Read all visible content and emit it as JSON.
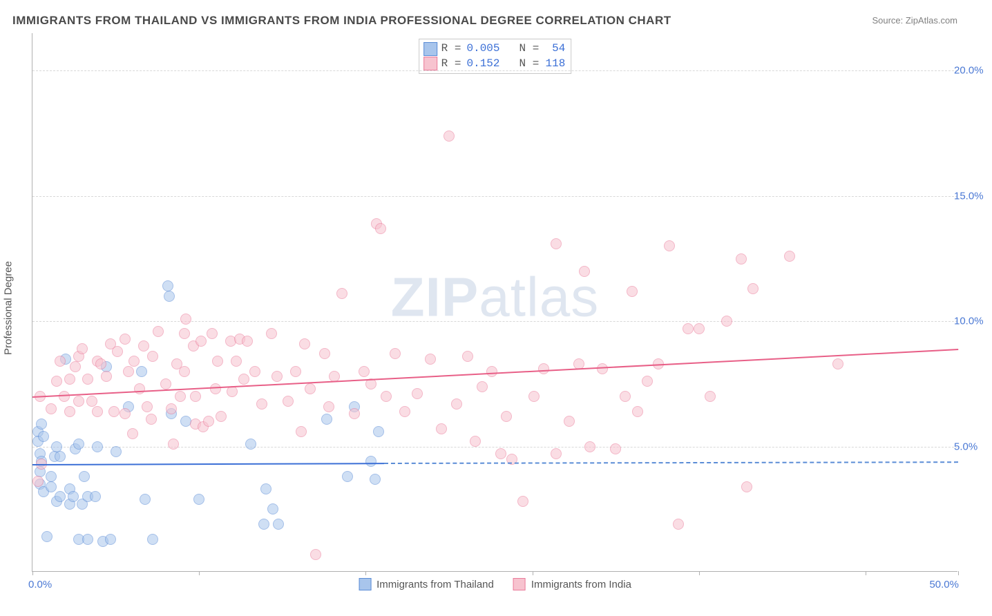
{
  "title": "IMMIGRANTS FROM THAILAND VS IMMIGRANTS FROM INDIA PROFESSIONAL DEGREE CORRELATION CHART",
  "source": "Source: ZipAtlas.com",
  "watermark": {
    "bold": "ZIP",
    "light": "atlas"
  },
  "yaxis_title": "Professional Degree",
  "chart": {
    "type": "scatter",
    "xlim": [
      0,
      50
    ],
    "ylim": [
      0,
      21.5
    ],
    "y_ticks": [
      5,
      10,
      15,
      20
    ],
    "y_tick_labels": [
      "5.0%",
      "10.0%",
      "15.0%",
      "20.0%"
    ],
    "x_ticks": [
      0,
      9,
      18,
      27,
      36,
      45,
      50
    ],
    "x_tick_show_label": [
      true,
      false,
      false,
      false,
      false,
      false,
      true
    ],
    "x_tick_labels": [
      "0.0%",
      "",
      "",
      "",
      "",
      "",
      "50.0%"
    ],
    "background_color": "#ffffff",
    "grid_color": "#d8d8d8",
    "axis_color": "#b0b0b0",
    "label_color": "#4a78d4",
    "marker_radius": 8,
    "marker_opacity": 0.55,
    "series": [
      {
        "key": "thailand",
        "label": "Immigrants from Thailand",
        "fill_color": "#a8c5ec",
        "stroke_color": "#5a8cd6",
        "trend": {
          "x1": 0,
          "y1": 4.3,
          "x2": 19,
          "y2": 4.35,
          "color": "#3b6fd6",
          "width": 2.3
        },
        "trend_dashed": {
          "x1": 19,
          "y1": 4.35,
          "x2": 50,
          "y2": 4.4,
          "color": "#5a8cd6"
        },
        "points": [
          [
            0.3,
            5.6
          ],
          [
            0.3,
            5.2
          ],
          [
            0.4,
            4.7
          ],
          [
            0.4,
            4.0
          ],
          [
            0.4,
            3.5
          ],
          [
            0.5,
            5.9
          ],
          [
            0.5,
            4.4
          ],
          [
            0.6,
            3.2
          ],
          [
            0.6,
            5.4
          ],
          [
            0.8,
            1.4
          ],
          [
            1.0,
            3.4
          ],
          [
            1.0,
            3.8
          ],
          [
            1.2,
            4.6
          ],
          [
            1.3,
            5.0
          ],
          [
            1.3,
            2.8
          ],
          [
            1.5,
            4.6
          ],
          [
            1.5,
            3.0
          ],
          [
            1.8,
            8.5
          ],
          [
            2.0,
            3.3
          ],
          [
            2.0,
            2.7
          ],
          [
            2.2,
            3.0
          ],
          [
            2.3,
            4.9
          ],
          [
            2.5,
            5.1
          ],
          [
            2.5,
            1.3
          ],
          [
            2.7,
            2.7
          ],
          [
            2.8,
            3.8
          ],
          [
            3.0,
            1.3
          ],
          [
            3.0,
            3.0
          ],
          [
            3.4,
            3.0
          ],
          [
            3.5,
            5.0
          ],
          [
            3.8,
            1.2
          ],
          [
            4.0,
            8.2
          ],
          [
            4.2,
            1.3
          ],
          [
            4.5,
            4.8
          ],
          [
            5.2,
            6.6
          ],
          [
            5.9,
            8.0
          ],
          [
            6.1,
            2.9
          ],
          [
            6.5,
            1.3
          ],
          [
            7.3,
            11.4
          ],
          [
            7.4,
            11.0
          ],
          [
            7.5,
            6.3
          ],
          [
            8.3,
            6.0
          ],
          [
            9.0,
            2.9
          ],
          [
            11.8,
            5.1
          ],
          [
            12.5,
            1.9
          ],
          [
            12.6,
            3.3
          ],
          [
            13.0,
            2.5
          ],
          [
            13.3,
            1.9
          ],
          [
            15.9,
            6.1
          ],
          [
            17.0,
            3.8
          ],
          [
            17.4,
            6.6
          ],
          [
            18.3,
            4.4
          ],
          [
            18.5,
            3.7
          ],
          [
            18.7,
            5.6
          ]
        ]
      },
      {
        "key": "india",
        "label": "Immigrants from India",
        "fill_color": "#f7c3cf",
        "stroke_color": "#ea7b9a",
        "trend": {
          "x1": 0,
          "y1": 7.0,
          "x2": 50,
          "y2": 8.9,
          "color": "#e85f87",
          "width": 2.3
        },
        "points": [
          [
            0.3,
            3.6
          ],
          [
            0.4,
            7.0
          ],
          [
            0.5,
            4.3
          ],
          [
            1.0,
            6.5
          ],
          [
            1.3,
            7.6
          ],
          [
            1.5,
            8.4
          ],
          [
            1.7,
            7.0
          ],
          [
            2.0,
            6.4
          ],
          [
            2.0,
            7.7
          ],
          [
            2.3,
            8.2
          ],
          [
            2.5,
            6.8
          ],
          [
            2.5,
            8.6
          ],
          [
            2.7,
            8.9
          ],
          [
            3.0,
            7.7
          ],
          [
            3.2,
            6.8
          ],
          [
            3.5,
            8.4
          ],
          [
            3.5,
            6.4
          ],
          [
            3.7,
            8.3
          ],
          [
            4.0,
            7.8
          ],
          [
            4.2,
            9.1
          ],
          [
            4.4,
            6.4
          ],
          [
            4.6,
            8.8
          ],
          [
            5.0,
            9.3
          ],
          [
            5.0,
            6.3
          ],
          [
            5.2,
            8.0
          ],
          [
            5.4,
            5.5
          ],
          [
            5.5,
            8.4
          ],
          [
            5.8,
            7.3
          ],
          [
            6.0,
            9.0
          ],
          [
            6.2,
            6.6
          ],
          [
            6.4,
            6.1
          ],
          [
            6.5,
            8.6
          ],
          [
            6.8,
            9.6
          ],
          [
            7.2,
            7.5
          ],
          [
            7.5,
            6.5
          ],
          [
            7.6,
            5.1
          ],
          [
            7.8,
            8.3
          ],
          [
            8.0,
            7.0
          ],
          [
            8.2,
            8.0
          ],
          [
            8.2,
            9.5
          ],
          [
            8.3,
            10.1
          ],
          [
            8.7,
            9.0
          ],
          [
            8.8,
            5.9
          ],
          [
            8.8,
            7.0
          ],
          [
            9.1,
            9.2
          ],
          [
            9.2,
            5.8
          ],
          [
            9.5,
            6.0
          ],
          [
            9.7,
            9.5
          ],
          [
            9.9,
            7.3
          ],
          [
            10.0,
            8.4
          ],
          [
            10.2,
            6.2
          ],
          [
            10.7,
            9.2
          ],
          [
            10.8,
            7.2
          ],
          [
            11.0,
            8.4
          ],
          [
            11.2,
            9.3
          ],
          [
            11.4,
            7.7
          ],
          [
            11.6,
            9.2
          ],
          [
            12.0,
            8.0
          ],
          [
            12.4,
            6.7
          ],
          [
            12.9,
            9.5
          ],
          [
            13.2,
            7.8
          ],
          [
            13.8,
            6.8
          ],
          [
            14.2,
            8.0
          ],
          [
            14.5,
            5.6
          ],
          [
            14.7,
            9.1
          ],
          [
            15.0,
            7.3
          ],
          [
            15.3,
            0.7
          ],
          [
            15.8,
            8.7
          ],
          [
            16.0,
            6.6
          ],
          [
            16.3,
            7.8
          ],
          [
            16.7,
            11.1
          ],
          [
            17.4,
            6.3
          ],
          [
            17.9,
            8.0
          ],
          [
            18.3,
            7.5
          ],
          [
            18.6,
            13.9
          ],
          [
            18.8,
            13.7
          ],
          [
            19.1,
            7.0
          ],
          [
            19.6,
            8.7
          ],
          [
            20.1,
            6.4
          ],
          [
            20.8,
            7.1
          ],
          [
            21.5,
            8.5
          ],
          [
            22.1,
            5.7
          ],
          [
            22.5,
            17.4
          ],
          [
            22.9,
            6.7
          ],
          [
            23.5,
            8.6
          ],
          [
            23.9,
            5.2
          ],
          [
            24.3,
            7.4
          ],
          [
            24.8,
            8.0
          ],
          [
            25.3,
            4.7
          ],
          [
            25.6,
            6.2
          ],
          [
            25.9,
            4.5
          ],
          [
            26.5,
            2.8
          ],
          [
            27.1,
            7.0
          ],
          [
            27.6,
            8.1
          ],
          [
            28.3,
            4.7
          ],
          [
            28.3,
            13.1
          ],
          [
            29.0,
            6.0
          ],
          [
            29.5,
            8.3
          ],
          [
            29.8,
            12.0
          ],
          [
            30.1,
            5.0
          ],
          [
            30.8,
            8.1
          ],
          [
            31.5,
            4.9
          ],
          [
            32.0,
            7.0
          ],
          [
            32.4,
            11.2
          ],
          [
            32.7,
            6.4
          ],
          [
            33.2,
            7.6
          ],
          [
            33.8,
            8.3
          ],
          [
            34.4,
            13.0
          ],
          [
            34.9,
            1.9
          ],
          [
            35.4,
            9.7
          ],
          [
            36.0,
            9.7
          ],
          [
            36.6,
            7.0
          ],
          [
            37.5,
            10.0
          ],
          [
            38.3,
            12.5
          ],
          [
            38.6,
            3.4
          ],
          [
            38.9,
            11.3
          ],
          [
            40.9,
            12.6
          ],
          [
            43.5,
            8.3
          ]
        ]
      }
    ]
  },
  "stat_legend": {
    "border_color": "#c9c9c9",
    "value_color": "#3b6fd6",
    "rows": [
      {
        "sw_fill": "#a8c5ec",
        "sw_border": "#5a8cd6",
        "r": "0.005",
        "n": "54"
      },
      {
        "sw_fill": "#f7c3cf",
        "sw_border": "#ea7b9a",
        "r": "0.152",
        "n": "118"
      }
    ],
    "label_r": "R =",
    "label_n": "N ="
  },
  "bottom_legend": [
    {
      "sw_fill": "#a8c5ec",
      "sw_border": "#5a8cd6",
      "label": "Immigrants from Thailand"
    },
    {
      "sw_fill": "#f7c3cf",
      "sw_border": "#ea7b9a",
      "label": "Immigrants from India"
    }
  ]
}
